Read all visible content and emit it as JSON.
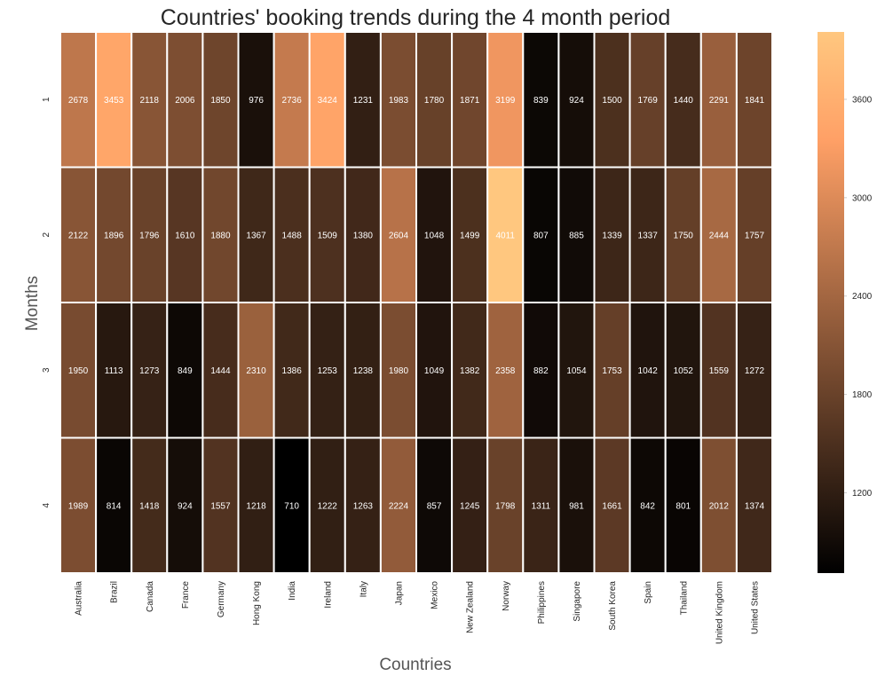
{
  "chart_data": {
    "type": "heatmap",
    "title": "Countries' booking trends during the 4 month period",
    "xlabel": "Countries",
    "ylabel": "Months",
    "colormap": "copper",
    "x": [
      "Australia",
      "Brazil",
      "Canada",
      "France",
      "Germany",
      "Hong Kong",
      "India",
      "Ireland",
      "Italy",
      "Japan",
      "Mexico",
      "New Zealand",
      "Norway",
      "Philippines",
      "Singapore",
      "South Korea",
      "Spain",
      "Thailand",
      "United Kingdom",
      "United States"
    ],
    "y": [
      "1",
      "2",
      "3",
      "4"
    ],
    "values": [
      [
        2678,
        3453,
        2118,
        2006,
        1850,
        976,
        2736,
        3424,
        1231,
        1983,
        1780,
        1871,
        3199,
        839,
        924,
        1500,
        1769,
        1440,
        2291,
        1841
      ],
      [
        2122,
        1896,
        1796,
        1610,
        1880,
        1367,
        1488,
        1509,
        1380,
        2604,
        1048,
        1499,
        4011,
        807,
        885,
        1339,
        1337,
        1750,
        2444,
        1757
      ],
      [
        1950,
        1113,
        1273,
        849,
        1444,
        2310,
        1386,
        1253,
        1238,
        1980,
        1049,
        1382,
        2358,
        882,
        1054,
        1753,
        1042,
        1052,
        1559,
        1272
      ],
      [
        1989,
        814,
        1418,
        924,
        1557,
        1218,
        710,
        1222,
        1263,
        2224,
        857,
        1245,
        1798,
        1311,
        981,
        1661,
        842,
        801,
        2012,
        1374
      ]
    ],
    "colorbar": {
      "ticks": [
        "1200",
        "1800",
        "2400",
        "3000",
        "3600"
      ],
      "range": [
        710,
        4011
      ]
    }
  }
}
